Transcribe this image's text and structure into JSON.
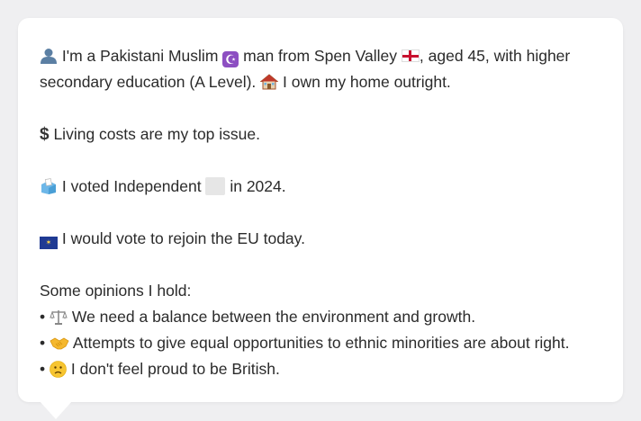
{
  "profile": {
    "line1_a": "I'm a Pakistani Muslim",
    "line1_b": "man from Spen Valley",
    "line1_c": ", aged 45, with higher",
    "line2_a": "secondary education (A Level).",
    "line2_b": "I own my home outright.",
    "issue": "Living costs are my top issue.",
    "vote_a": "I voted Independent",
    "vote_b": "in 2024.",
    "eu": "I would vote to rejoin the EU today.",
    "opinions_heading": "Some opinions I hold:",
    "bullet": "•",
    "opinions": [
      {
        "icon": "scales-icon",
        "text": "We need a balance between the environment and growth."
      },
      {
        "icon": "handshake-icon",
        "text": "Attempts to give equal opportunities to ethnic minorities are about right."
      },
      {
        "icon": "slightly-frowning-face-icon",
        "text": "I don't feel proud to be British."
      }
    ]
  },
  "icons": {
    "person": "person-silhouette-icon",
    "religion": "star-and-crescent-icon",
    "flag": "england-flag-icon",
    "home": "house-icon",
    "issue": "dollar-sign-icon",
    "vote": "ballot-box-icon",
    "party": "party-color-swatch-icon",
    "eu": "eu-flag-icon"
  },
  "colors": {
    "background": "#efeff1",
    "card": "#ffffff",
    "text": "#2b2b2b",
    "crescent_bg": "#8d4fc2",
    "party_swatch": "#e6e6e6"
  }
}
